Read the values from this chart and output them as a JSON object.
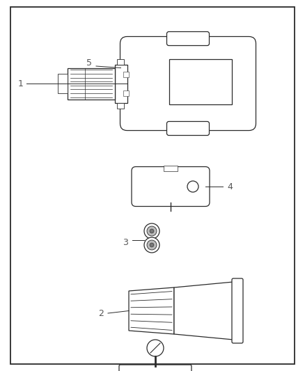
{
  "bg_color": "#ffffff",
  "border_color": "#2a2a2a",
  "line_color": "#2a2a2a",
  "label_color": "#555555",
  "fig_width": 4.38,
  "fig_height": 5.33,
  "dpi": 100
}
